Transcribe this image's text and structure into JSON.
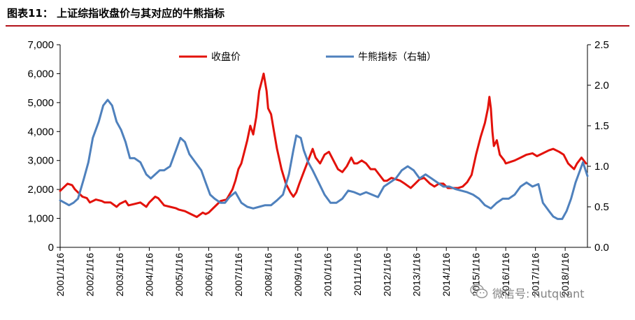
{
  "figure_title": "图表11： 上证综指收盘价与其对应的牛熊指标",
  "watermark": "微信号: nutquant",
  "chart_data": {
    "type": "line",
    "title": "图表11： 上证综指收盘价与其对应的牛熊指标",
    "legend": [
      "收盘价",
      "牛熊指标（右轴）"
    ],
    "legend_position": "top-center",
    "x_tick_labels": [
      "2001/1/16",
      "2002/1/16",
      "2003/1/16",
      "2004/1/16",
      "2005/1/16",
      "2006/1/16",
      "2007/1/16",
      "2008/1/16",
      "2009/1/16",
      "2010/1/16",
      "2011/1/16",
      "2012/1/16",
      "2013/1/16",
      "2014/1/16",
      "2015/1/16",
      "2016/1/16",
      "2017/1/16",
      "2018/1/16"
    ],
    "x_range": [
      2001.0,
      2018.75
    ],
    "y_left": {
      "min": 0,
      "max": 7000,
      "ticks": [
        0,
        1000,
        2000,
        3000,
        4000,
        5000,
        6000,
        7000
      ],
      "tick_labels": [
        "0",
        "1,000",
        "2,000",
        "3,000",
        "4,000",
        "5,000",
        "6,000",
        "7,000"
      ]
    },
    "y_right": {
      "min": 0,
      "max": 2.5,
      "ticks": [
        0,
        0.5,
        1.0,
        1.5,
        2.0,
        2.5
      ],
      "tick_labels": [
        "0.0",
        "0.5",
        "1.0",
        "1.5",
        "2.0",
        "2.5"
      ]
    },
    "series": [
      {
        "name": "收盘价",
        "axis": "left",
        "color": "#e3120b",
        "x": [
          2001.0,
          2001.1,
          2001.25,
          2001.4,
          2001.5,
          2001.6,
          2001.75,
          2001.9,
          2002.0,
          2002.2,
          2002.4,
          2002.5,
          2002.7,
          2002.9,
          2003.0,
          2003.2,
          2003.3,
          2003.5,
          2003.7,
          2003.9,
          2004.0,
          2004.2,
          2004.3,
          2004.5,
          2004.7,
          2004.9,
          2005.0,
          2005.2,
          2005.4,
          2005.6,
          2005.8,
          2005.9,
          2006.0,
          2006.2,
          2006.4,
          2006.6,
          2006.8,
          2006.9,
          2007.0,
          2007.1,
          2007.2,
          2007.3,
          2007.4,
          2007.5,
          2007.6,
          2007.7,
          2007.8,
          2007.85,
          2007.95,
          2008.0,
          2008.1,
          2008.2,
          2008.3,
          2008.45,
          2008.6,
          2008.75,
          2008.85,
          2008.95,
          2009.05,
          2009.2,
          2009.35,
          2009.5,
          2009.6,
          2009.75,
          2009.9,
          2010.05,
          2010.2,
          2010.35,
          2010.5,
          2010.65,
          2010.8,
          2010.9,
          2011.0,
          2011.15,
          2011.3,
          2011.45,
          2011.6,
          2011.75,
          2011.9,
          2012.0,
          2012.15,
          2012.3,
          2012.45,
          2012.6,
          2012.8,
          2012.95,
          2013.1,
          2013.25,
          2013.45,
          2013.6,
          2013.75,
          2013.9,
          2014.05,
          2014.2,
          2014.4,
          2014.55,
          2014.7,
          2014.85,
          2015.0,
          2015.15,
          2015.3,
          2015.4,
          2015.45,
          2015.5,
          2015.55,
          2015.6,
          2015.7,
          2015.8,
          2015.95,
          2016.0,
          2016.15,
          2016.3,
          2016.5,
          2016.7,
          2016.9,
          2017.05,
          2017.25,
          2017.45,
          2017.6,
          2017.8,
          2017.95,
          2018.1,
          2018.2,
          2018.3,
          2018.4,
          2018.55,
          2018.7
        ],
        "y": [
          1950,
          2050,
          2200,
          2150,
          2000,
          1900,
          1750,
          1700,
          1550,
          1650,
          1600,
          1550,
          1550,
          1400,
          1500,
          1600,
          1450,
          1500,
          1550,
          1400,
          1550,
          1750,
          1700,
          1450,
          1400,
          1350,
          1300,
          1250,
          1150,
          1050,
          1200,
          1150,
          1200,
          1400,
          1600,
          1650,
          2000,
          2300,
          2700,
          2900,
          3300,
          3700,
          4200,
          3900,
          4500,
          5400,
          5800,
          6000,
          5400,
          4800,
          4600,
          4000,
          3400,
          2700,
          2200,
          1900,
          1750,
          1900,
          2200,
          2600,
          3000,
          3400,
          3100,
          2900,
          3200,
          3300,
          3000,
          2700,
          2600,
          2800,
          3100,
          2900,
          2900,
          3000,
          2900,
          2700,
          2700,
          2500,
          2300,
          2300,
          2400,
          2350,
          2300,
          2200,
          2050,
          2200,
          2350,
          2400,
          2200,
          2100,
          2200,
          2200,
          2050,
          2050,
          2050,
          2100,
          2250,
          2500,
          3200,
          3800,
          4300,
          4800,
          5200,
          4800,
          4000,
          3500,
          3700,
          3200,
          3000,
          2900,
          2950,
          3000,
          3100,
          3200,
          3250,
          3150,
          3250,
          3350,
          3400,
          3300,
          3200,
          2900,
          2800,
          2700,
          2900,
          3100,
          2900
        ]
      },
      {
        "name": "牛熊指标（右轴）",
        "axis": "right",
        "color": "#4f81bd",
        "x": [
          2001.0,
          2001.15,
          2001.3,
          2001.45,
          2001.6,
          2001.8,
          2001.95,
          2002.1,
          2002.3,
          2002.45,
          2002.6,
          2002.75,
          2002.9,
          2003.05,
          2003.2,
          2003.35,
          2003.5,
          2003.7,
          2003.9,
          2004.05,
          2004.2,
          2004.35,
          2004.5,
          2004.7,
          2004.9,
          2005.05,
          2005.2,
          2005.35,
          2005.55,
          2005.75,
          2005.9,
          2006.05,
          2006.2,
          2006.4,
          2006.55,
          2006.7,
          2006.9,
          2007.1,
          2007.3,
          2007.5,
          2007.7,
          2007.9,
          2008.1,
          2008.3,
          2008.5,
          2008.7,
          2008.85,
          2008.95,
          2009.1,
          2009.2,
          2009.35,
          2009.5,
          2009.7,
          2009.9,
          2010.1,
          2010.3,
          2010.5,
          2010.7,
          2010.9,
          2011.1,
          2011.3,
          2011.5,
          2011.7,
          2011.9,
          2012.1,
          2012.3,
          2012.5,
          2012.7,
          2012.9,
          2013.1,
          2013.3,
          2013.5,
          2013.7,
          2013.9,
          2014.1,
          2014.3,
          2014.5,
          2014.7,
          2014.9,
          2015.1,
          2015.3,
          2015.5,
          2015.7,
          2015.9,
          2016.1,
          2016.3,
          2016.5,
          2016.7,
          2016.9,
          2017.1,
          2017.25,
          2017.45,
          2017.6,
          2017.75,
          2017.9,
          2018.05,
          2018.2,
          2018.35,
          2018.5,
          2018.6,
          2018.75
        ],
        "y": [
          0.58,
          0.55,
          0.52,
          0.55,
          0.6,
          0.85,
          1.05,
          1.35,
          1.55,
          1.75,
          1.82,
          1.75,
          1.55,
          1.45,
          1.3,
          1.1,
          1.1,
          1.05,
          0.9,
          0.85,
          0.9,
          0.95,
          0.95,
          1.0,
          1.2,
          1.35,
          1.3,
          1.15,
          1.05,
          0.95,
          0.8,
          0.65,
          0.6,
          0.55,
          0.55,
          0.62,
          0.68,
          0.55,
          0.5,
          0.48,
          0.5,
          0.52,
          0.52,
          0.58,
          0.65,
          0.9,
          1.2,
          1.38,
          1.35,
          1.2,
          1.05,
          0.95,
          0.8,
          0.65,
          0.55,
          0.55,
          0.6,
          0.7,
          0.68,
          0.65,
          0.68,
          0.65,
          0.62,
          0.75,
          0.8,
          0.85,
          0.95,
          1.0,
          0.95,
          0.85,
          0.9,
          0.85,
          0.8,
          0.75,
          0.75,
          0.72,
          0.7,
          0.68,
          0.65,
          0.6,
          0.52,
          0.48,
          0.55,
          0.6,
          0.6,
          0.65,
          0.75,
          0.8,
          0.75,
          0.78,
          0.55,
          0.45,
          0.38,
          0.35,
          0.35,
          0.45,
          0.6,
          0.8,
          0.95,
          1.05,
          0.88
        ]
      }
    ]
  }
}
